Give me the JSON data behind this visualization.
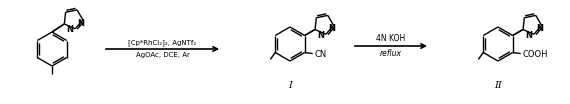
{
  "bg_color": "#ffffff",
  "line_color": "#000000",
  "arrow_color": "#000000",
  "figsize": [
    5.7,
    1.04
  ],
  "dpi": 100,
  "reagent1_line1": "[Cp*RhCl₂]₂, AgNTf₂",
  "reagent1_line2": "AgOAc, DCE, Ar",
  "reagent2_line1": "4N KOH",
  "reagent2_line2": "reflux",
  "label1": "I",
  "label2": "II"
}
